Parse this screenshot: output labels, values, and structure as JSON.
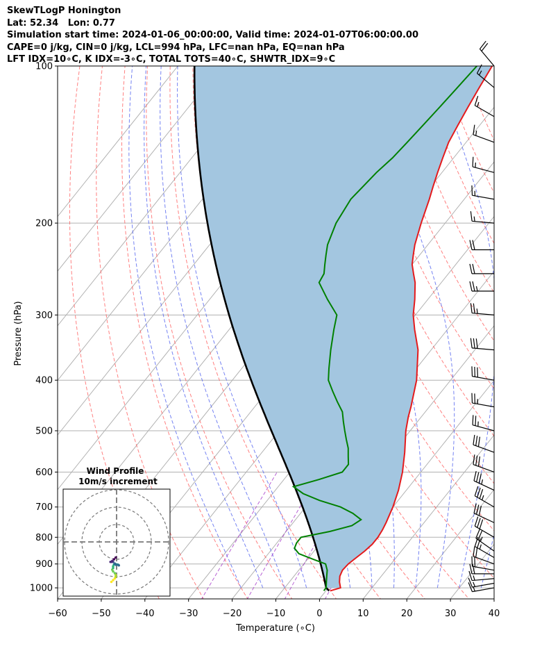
{
  "header": {
    "line1": "SkewTLogP Honington",
    "line2": "Lat: 52.34   Lon: 0.77",
    "line3": "Simulation start time: 2024-01-06_00:00:00, Valid time: 2024-01-07T06:00:00.00",
    "line4": "CAPE=0 j/kg, CIN=0 j/kg, LCL=994 hPa, LFC=nan hPa, EQ=nan hPa",
    "line5": "LFT IDX=10∘C, K IDX=-3∘C, TOTAL TOTS=40∘C, SHWTR_IDX=9∘C"
  },
  "colors": {
    "temperature": "#e41a1c",
    "dewpoint": "#008000",
    "parcel": "#000000",
    "cape_fill": "#a3c6e0",
    "dry_adiabat": "#ff6060",
    "moist_adiabat": "#5c6cf0",
    "mixing_ratio": "#aa44cc",
    "isotherm": "#b0b0b0"
  },
  "chart_data": {
    "type": "skewt",
    "xlabel": "Temperature (∘C)",
    "ylabel": "Pressure (hPa)",
    "xlim": [
      -60,
      40
    ],
    "ylim": [
      1050,
      100
    ],
    "x_ticks": [
      "−60",
      "−50",
      "−40",
      "−30",
      "−20",
      "−10",
      "0",
      "10",
      "20",
      "30",
      "40"
    ],
    "x_tick_values": [
      -60,
      -50,
      -40,
      -30,
      -20,
      -10,
      0,
      10,
      20,
      30,
      40
    ],
    "y_ticks": [
      "100",
      "200",
      "300",
      "400",
      "500",
      "600",
      "700",
      "800",
      "900",
      "1000"
    ],
    "y_tick_values": [
      100,
      200,
      300,
      400,
      500,
      600,
      700,
      800,
      900,
      1000
    ],
    "grid": true,
    "series": [
      {
        "key": "temperature",
        "points": [
          [
            1013,
            1.0
          ],
          [
            1000,
            2.8
          ],
          [
            975,
            1.5
          ],
          [
            950,
            0.5
          ],
          [
            925,
            0
          ],
          [
            900,
            0.2
          ],
          [
            875,
            0.9
          ],
          [
            850,
            1.6
          ],
          [
            825,
            2.1
          ],
          [
            800,
            2.1
          ],
          [
            775,
            1.8
          ],
          [
            750,
            1.3
          ],
          [
            700,
            0
          ],
          [
            650,
            -1.8
          ],
          [
            600,
            -4.2
          ],
          [
            550,
            -7.3
          ],
          [
            500,
            -11
          ],
          [
            470,
            -13
          ],
          [
            450,
            -14.2
          ],
          [
            400,
            -17.8
          ],
          [
            350,
            -23
          ],
          [
            320,
            -27.5
          ],
          [
            300,
            -30.5
          ],
          [
            280,
            -33
          ],
          [
            260,
            -36
          ],
          [
            250,
            -38
          ],
          [
            240,
            -40
          ],
          [
            230,
            -41.5
          ],
          [
            220,
            -43
          ],
          [
            200,
            -45.5
          ],
          [
            180,
            -48
          ],
          [
            170,
            -49.5
          ],
          [
            160,
            -51
          ],
          [
            150,
            -52.5
          ],
          [
            140,
            -54
          ],
          [
            130,
            -55
          ],
          [
            120,
            -56
          ],
          [
            110,
            -57
          ],
          [
            100,
            -58
          ]
        ]
      },
      {
        "key": "dewpoint",
        "points": [
          [
            1013,
            -0.5
          ],
          [
            1000,
            -0.5
          ],
          [
            975,
            -1.5
          ],
          [
            950,
            -2.5
          ],
          [
            925,
            -3.5
          ],
          [
            900,
            -5
          ],
          [
            880,
            -9
          ],
          [
            860,
            -13
          ],
          [
            840,
            -15
          ],
          [
            820,
            -15.5
          ],
          [
            800,
            -15.5
          ],
          [
            780,
            -10
          ],
          [
            760,
            -6
          ],
          [
            740,
            -5
          ],
          [
            720,
            -8
          ],
          [
            700,
            -12
          ],
          [
            680,
            -18
          ],
          [
            660,
            -23
          ],
          [
            640,
            -26.5
          ],
          [
            620,
            -22
          ],
          [
            600,
            -18
          ],
          [
            580,
            -18
          ],
          [
            560,
            -19.5
          ],
          [
            540,
            -21
          ],
          [
            520,
            -23
          ],
          [
            500,
            -25
          ],
          [
            480,
            -27
          ],
          [
            460,
            -29
          ],
          [
            440,
            -32
          ],
          [
            420,
            -35
          ],
          [
            400,
            -38
          ],
          [
            380,
            -40
          ],
          [
            350,
            -43
          ],
          [
            320,
            -46
          ],
          [
            300,
            -48
          ],
          [
            280,
            -53
          ],
          [
            260,
            -58
          ],
          [
            250,
            -58.5
          ],
          [
            240,
            -60
          ],
          [
            230,
            -61.5
          ],
          [
            220,
            -63
          ],
          [
            200,
            -65
          ],
          [
            180,
            -66
          ],
          [
            170,
            -65.5
          ],
          [
            160,
            -65
          ],
          [
            150,
            -64
          ],
          [
            140,
            -63.5
          ],
          [
            130,
            -63
          ],
          [
            120,
            -62.5
          ],
          [
            110,
            -62
          ],
          [
            100,
            -61.5
          ]
        ]
      }
    ],
    "cape_fill_label": "",
    "barbs": {
      "pressures": [
        1000,
        980,
        960,
        940,
        925,
        900,
        875,
        850,
        800,
        750,
        700,
        650,
        600,
        550,
        500,
        450,
        400,
        350,
        300,
        270,
        250,
        225,
        200,
        180,
        160,
        140,
        125,
        110,
        100
      ],
      "speeds_kt": [
        15,
        15,
        15,
        20,
        20,
        20,
        25,
        25,
        30,
        30,
        35,
        35,
        30,
        30,
        25,
        25,
        30,
        30,
        25,
        25,
        20,
        20,
        15,
        15,
        15,
        15,
        15,
        15,
        20
      ],
      "directions_deg": [
        260,
        260,
        265,
        270,
        280,
        290,
        300,
        305,
        300,
        295,
        300,
        295,
        290,
        290,
        285,
        280,
        280,
        275,
        275,
        270,
        270,
        270,
        275,
        280,
        285,
        290,
        300,
        310,
        320
      ]
    },
    "hodograph": {
      "title_line1": "Wind Profile",
      "title_line2": "10m/s increment",
      "rings_ms": [
        10,
        20,
        30
      ],
      "points_ms": [
        [
          -3,
          -15
        ],
        [
          -2,
          -14
        ],
        [
          -1,
          -13
        ],
        [
          -0.5,
          -12
        ],
        [
          -0.5,
          -11
        ],
        [
          -1,
          -10
        ],
        [
          -2,
          -9
        ],
        [
          -2.5,
          -8
        ],
        [
          -2,
          -7
        ],
        [
          -2,
          -6
        ],
        [
          -1.5,
          -5
        ],
        [
          -1,
          -4.5
        ],
        [
          -0.5,
          -4.8
        ],
        [
          0.5,
          -5
        ],
        [
          1,
          -5.2
        ],
        [
          1.3,
          -5.5
        ],
        [
          -0.3,
          -5.2
        ],
        [
          -1,
          -4.5
        ],
        [
          -2,
          -3.5
        ],
        [
          -2.5,
          -3
        ],
        [
          -3,
          -3.5
        ],
        [
          -3.5,
          -3.5
        ],
        [
          -2.5,
          -3
        ],
        [
          -1.5,
          -2
        ],
        [
          -0.5,
          -1
        ]
      ]
    }
  }
}
